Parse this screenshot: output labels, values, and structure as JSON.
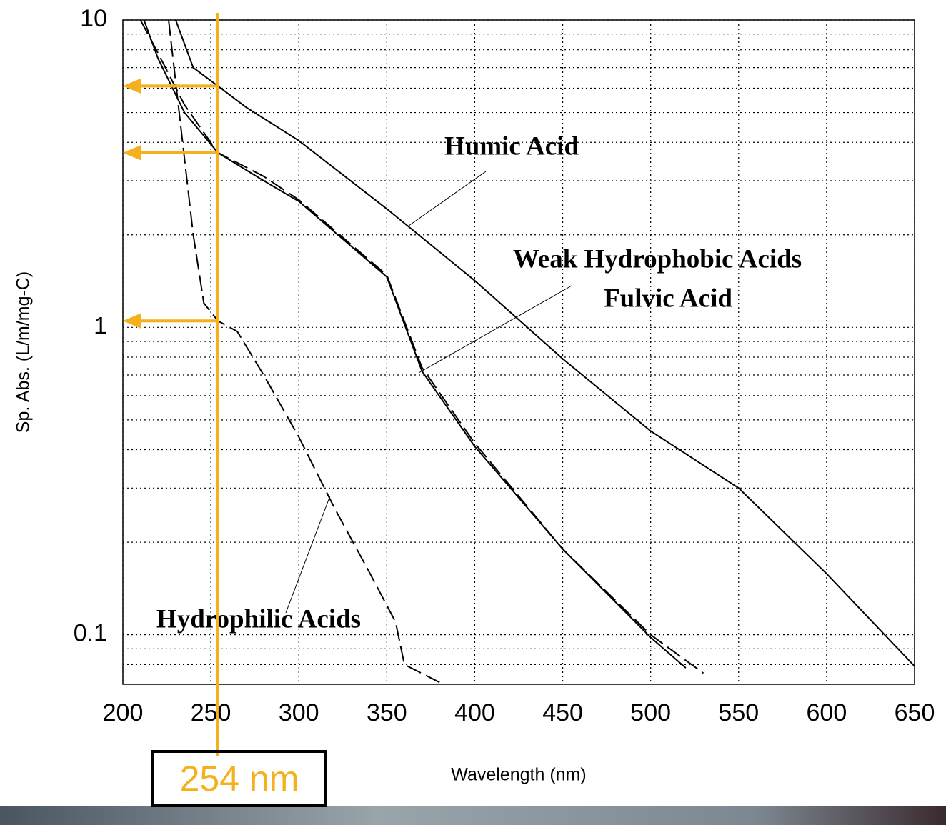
{
  "chart_data": {
    "type": "line",
    "xlabel": "Wavelength (nm)",
    "ylabel": "Sp. Abs. (L/m/mg-C)",
    "xlim": [
      200,
      650
    ],
    "xticks": [
      200,
      250,
      300,
      350,
      400,
      450,
      500,
      550,
      600,
      650
    ],
    "ylim": [
      0.069,
      10
    ],
    "yticks": [
      0.1,
      1,
      10
    ],
    "log_y": true,
    "grid": true,
    "y_minor_grid": [
      0.08,
      0.09,
      0.2,
      0.3,
      0.4,
      0.5,
      0.6,
      0.7,
      0.8,
      0.9,
      2,
      3,
      4,
      5,
      6,
      7,
      8,
      9
    ],
    "series": [
      {
        "name": "Humic Acid",
        "color": "#000000",
        "style": "solid",
        "x": [
          230,
          240,
          254,
          270,
          300,
          350,
          400,
          450,
          500,
          550,
          600,
          650
        ],
        "values": [
          10,
          7.0,
          6.1,
          5.2,
          4.05,
          2.43,
          1.42,
          0.79,
          0.46,
          0.3,
          0.158,
          0.079
        ]
      },
      {
        "name": "Weak Hydrophobic Acids",
        "color": "#000000",
        "style": "dashed",
        "x": [
          210,
          220,
          235,
          254,
          280,
          300,
          350,
          370,
          400,
          450,
          500,
          530
        ],
        "values": [
          10,
          7.8,
          5.3,
          3.7,
          3.1,
          2.6,
          1.48,
          0.74,
          0.42,
          0.19,
          0.1,
          0.075
        ]
      },
      {
        "name": "Fulvic Acid",
        "color": "#000000",
        "style": "solid",
        "x": [
          212,
          220,
          235,
          254,
          280,
          300,
          350,
          370,
          400,
          450,
          500,
          520
        ],
        "values": [
          10,
          7.5,
          5.0,
          3.7,
          3.0,
          2.57,
          1.46,
          0.72,
          0.41,
          0.19,
          0.098,
          0.078
        ]
      },
      {
        "name": "Hydrophilic Acids",
        "color": "#000000",
        "style": "dashed",
        "x": [
          226,
          232,
          240,
          246,
          254,
          265,
          280,
          300,
          320,
          340,
          355,
          360,
          380
        ],
        "values": [
          10,
          5,
          2,
          1.2,
          1.05,
          0.97,
          0.7,
          0.44,
          0.26,
          0.16,
          0.11,
          0.08,
          0.07
        ]
      }
    ],
    "marker": {
      "x": 254,
      "label": "254 nm",
      "color": "#f5b01e",
      "arrows": [
        6.1,
        3.7,
        1.05
      ]
    }
  }
}
